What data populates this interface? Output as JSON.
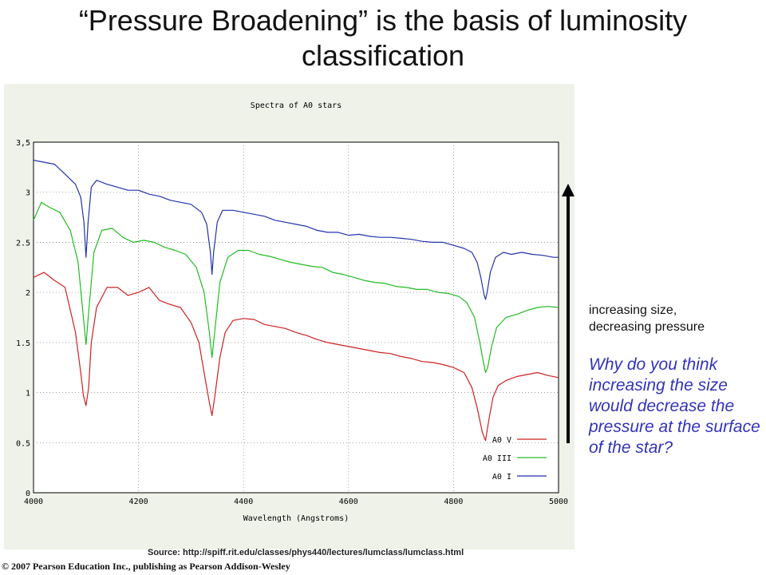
{
  "slide": {
    "title": "“Pressure Broadening” is the basis of luminosity classification",
    "caption_line1": "increasing size,",
    "caption_line2": "decreasing pressure",
    "question": "Why do you think increasing the size would decrease the pressure at the surface of the star?",
    "source": "Source: http://spiff.rit.edu/classes/phys440/lectures/lumclass/lumclass.html",
    "copyright": "© 2007 Pearson Education Inc., publishing as Pearson Addison-Wesley"
  },
  "chart_data": {
    "type": "line",
    "title": "Spectra of A0 stars",
    "xlabel": "Wavelength (Angstroms)",
    "ylabel": "",
    "xlim": [
      4000,
      5000
    ],
    "ylim": [
      0,
      3.5
    ],
    "xticks": [
      4000,
      4200,
      4400,
      4600,
      4800,
      5000
    ],
    "yticks": [
      0,
      0.5,
      1,
      1.5,
      2,
      2.5,
      3,
      3.5
    ],
    "ytick_labels": [
      "0",
      "0.5",
      "1",
      "1.5",
      "2",
      "2.5",
      "3",
      "3,5"
    ],
    "grid": true,
    "legend_position": "bottom-right",
    "series": [
      {
        "name": "A0 V",
        "color": "#cc2222",
        "x": [
          4000,
          4020,
          4040,
          4060,
          4080,
          4090,
          4095,
          4100,
          4105,
          4110,
          4120,
          4140,
          4160,
          4180,
          4200,
          4220,
          4240,
          4260,
          4280,
          4300,
          4315,
          4325,
          4335,
          4340,
          4345,
          4355,
          4365,
          4380,
          4400,
          4420,
          4440,
          4460,
          4480,
          4500,
          4520,
          4540,
          4560,
          4580,
          4600,
          4620,
          4640,
          4660,
          4680,
          4700,
          4720,
          4740,
          4760,
          4780,
          4800,
          4820,
          4835,
          4845,
          4855,
          4861,
          4867,
          4875,
          4885,
          4900,
          4920,
          4940,
          4960,
          4980,
          5000
        ],
        "y": [
          2.15,
          2.2,
          2.12,
          2.05,
          1.6,
          1.2,
          0.97,
          0.87,
          1.05,
          1.5,
          1.85,
          2.05,
          2.05,
          1.97,
          2.0,
          2.05,
          1.92,
          1.88,
          1.85,
          1.7,
          1.5,
          1.2,
          0.9,
          0.77,
          0.95,
          1.35,
          1.6,
          1.72,
          1.74,
          1.73,
          1.68,
          1.66,
          1.64,
          1.6,
          1.57,
          1.53,
          1.5,
          1.48,
          1.46,
          1.44,
          1.42,
          1.4,
          1.39,
          1.36,
          1.34,
          1.31,
          1.3,
          1.28,
          1.25,
          1.2,
          1.05,
          0.85,
          0.6,
          0.52,
          0.72,
          0.95,
          1.07,
          1.12,
          1.16,
          1.18,
          1.2,
          1.17,
          1.15
        ]
      },
      {
        "name": "A0 III",
        "color": "#22bb22",
        "x": [
          4000,
          4015,
          4030,
          4050,
          4070,
          4085,
          4095,
          4100,
          4105,
          4115,
          4130,
          4150,
          4170,
          4190,
          4210,
          4230,
          4250,
          4270,
          4290,
          4310,
          4325,
          4335,
          4340,
          4345,
          4355,
          4370,
          4390,
          4410,
          4430,
          4450,
          4470,
          4490,
          4510,
          4530,
          4550,
          4570,
          4590,
          4610,
          4630,
          4650,
          4670,
          4690,
          4710,
          4730,
          4750,
          4770,
          4790,
          4810,
          4825,
          4840,
          4850,
          4857,
          4861,
          4865,
          4872,
          4882,
          4900,
          4920,
          4940,
          4960,
          4980,
          5000
        ],
        "y": [
          2.72,
          2.9,
          2.85,
          2.8,
          2.62,
          2.3,
          1.75,
          1.48,
          1.8,
          2.4,
          2.62,
          2.64,
          2.55,
          2.5,
          2.52,
          2.5,
          2.45,
          2.42,
          2.38,
          2.25,
          2.0,
          1.6,
          1.35,
          1.6,
          2.1,
          2.35,
          2.42,
          2.42,
          2.38,
          2.36,
          2.33,
          2.3,
          2.28,
          2.26,
          2.25,
          2.2,
          2.18,
          2.15,
          2.12,
          2.1,
          2.09,
          2.06,
          2.05,
          2.03,
          2.03,
          2.0,
          1.99,
          1.96,
          1.9,
          1.75,
          1.5,
          1.3,
          1.2,
          1.25,
          1.45,
          1.65,
          1.75,
          1.78,
          1.82,
          1.85,
          1.86,
          1.85
        ]
      },
      {
        "name": "A0 I",
        "color": "#2233aa",
        "x": [
          4000,
          4020,
          4040,
          4060,
          4080,
          4090,
          4096,
          4100,
          4104,
          4110,
          4120,
          4140,
          4160,
          4180,
          4200,
          4220,
          4240,
          4260,
          4280,
          4300,
          4320,
          4330,
          4337,
          4340,
          4343,
          4350,
          4360,
          4380,
          4400,
          4420,
          4440,
          4460,
          4480,
          4500,
          4520,
          4540,
          4560,
          4580,
          4600,
          4620,
          4640,
          4660,
          4680,
          4700,
          4720,
          4740,
          4760,
          4780,
          4800,
          4820,
          4835,
          4845,
          4852,
          4858,
          4861,
          4864,
          4870,
          4880,
          4895,
          4910,
          4930,
          4950,
          4970,
          4990,
          5000
        ],
        "y": [
          3.32,
          3.3,
          3.28,
          3.18,
          3.08,
          2.95,
          2.7,
          2.35,
          2.7,
          3.05,
          3.12,
          3.08,
          3.05,
          3.02,
          3.02,
          2.98,
          2.96,
          2.92,
          2.9,
          2.88,
          2.8,
          2.68,
          2.4,
          2.18,
          2.4,
          2.7,
          2.82,
          2.82,
          2.8,
          2.78,
          2.76,
          2.72,
          2.7,
          2.68,
          2.66,
          2.62,
          2.6,
          2.6,
          2.57,
          2.58,
          2.56,
          2.55,
          2.55,
          2.54,
          2.53,
          2.51,
          2.5,
          2.5,
          2.47,
          2.44,
          2.4,
          2.3,
          2.15,
          1.98,
          1.93,
          2.0,
          2.2,
          2.35,
          2.4,
          2.38,
          2.4,
          2.38,
          2.37,
          2.35,
          2.35
        ]
      }
    ]
  }
}
